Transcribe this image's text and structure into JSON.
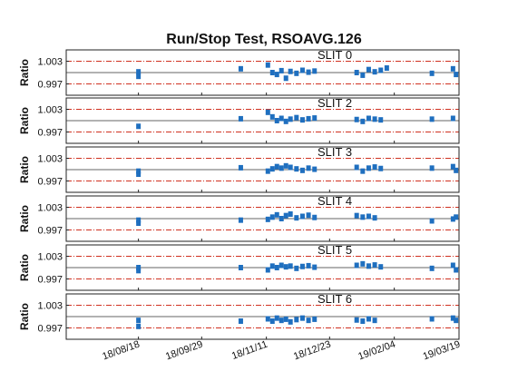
{
  "figure": {
    "title": "Run/Stop Test, RSOAVG.126"
  },
  "chart_data": {
    "type": "scatter",
    "title": "Run/Stop Test, RSOAVG.126",
    "ylabel": "Ratio",
    "ytick_labels": [
      "1.003",
      "0.997"
    ],
    "reference_lines": [
      1.003,
      0.997,
      1.0
    ],
    "ylim": [
      0.994,
      1.006
    ],
    "x_tick_labels": [
      "18/08/18",
      "18/09/29",
      "18/11/11",
      "18/12/23",
      "19/02/04",
      "19/03/19"
    ],
    "x_tick_dates": [
      "2018-08-18",
      "2018-09-29",
      "2018-11-11",
      "2018-12-23",
      "2019-02-04",
      "2019-03-19"
    ],
    "xlim": [
      "2018-07-01",
      "2019-03-19"
    ],
    "grid": false,
    "marker_color": "#1f6fbf",
    "reference_line_color": "#d03020",
    "panels": [
      {
        "label": "SLIT 0",
        "points": [
          {
            "x": "2018-08-18",
            "y": 0.999
          },
          {
            "x": "2018-08-18",
            "y": 1.0002
          },
          {
            "x": "2018-10-25",
            "y": 1.001
          },
          {
            "x": "2018-11-12",
            "y": 1.002
          },
          {
            "x": "2018-11-15",
            "y": 1.0
          },
          {
            "x": "2018-11-18",
            "y": 0.9995
          },
          {
            "x": "2018-11-21",
            "y": 1.0005
          },
          {
            "x": "2018-11-24",
            "y": 0.9985
          },
          {
            "x": "2018-11-27",
            "y": 1.0003
          },
          {
            "x": "2018-12-01",
            "y": 0.9998
          },
          {
            "x": "2018-12-05",
            "y": 1.0006
          },
          {
            "x": "2018-12-09",
            "y": 1.0001
          },
          {
            "x": "2018-12-13",
            "y": 1.0004
          },
          {
            "x": "2019-01-10",
            "y": 1.0
          },
          {
            "x": "2019-01-14",
            "y": 0.9993
          },
          {
            "x": "2019-01-18",
            "y": 1.0008
          },
          {
            "x": "2019-01-22",
            "y": 1.0002
          },
          {
            "x": "2019-01-26",
            "y": 1.0006
          },
          {
            "x": "2019-01-30",
            "y": 1.0012
          },
          {
            "x": "2019-03-01",
            "y": 0.9998
          },
          {
            "x": "2019-03-15",
            "y": 1.001
          },
          {
            "x": "2019-03-17",
            "y": 0.9995
          }
        ]
      },
      {
        "label": "SLIT 2",
        "points": [
          {
            "x": "2018-08-18",
            "y": 0.9985
          },
          {
            "x": "2018-10-25",
            "y": 1.0005
          },
          {
            "x": "2018-11-12",
            "y": 1.0022
          },
          {
            "x": "2018-11-15",
            "y": 1.001
          },
          {
            "x": "2018-11-18",
            "y": 1.0
          },
          {
            "x": "2018-11-21",
            "y": 1.0006
          },
          {
            "x": "2018-11-24",
            "y": 0.9998
          },
          {
            "x": "2018-11-27",
            "y": 1.0004
          },
          {
            "x": "2018-12-01",
            "y": 1.0008
          },
          {
            "x": "2018-12-05",
            "y": 1.0002
          },
          {
            "x": "2018-12-09",
            "y": 1.0005
          },
          {
            "x": "2018-12-13",
            "y": 1.0007
          },
          {
            "x": "2019-01-10",
            "y": 1.0003
          },
          {
            "x": "2019-01-14",
            "y": 0.9998
          },
          {
            "x": "2019-01-18",
            "y": 1.0006
          },
          {
            "x": "2019-01-22",
            "y": 1.0004
          },
          {
            "x": "2019-01-26",
            "y": 1.0002
          },
          {
            "x": "2019-03-01",
            "y": 1.0004
          },
          {
            "x": "2019-03-15",
            "y": 1.0006
          }
        ]
      },
      {
        "label": "SLIT 3",
        "points": [
          {
            "x": "2018-08-18",
            "y": 0.9988
          },
          {
            "x": "2018-08-18",
            "y": 0.9996
          },
          {
            "x": "2018-10-25",
            "y": 1.0005
          },
          {
            "x": "2018-11-12",
            "y": 0.9996
          },
          {
            "x": "2018-11-15",
            "y": 1.0002
          },
          {
            "x": "2018-11-18",
            "y": 1.0008
          },
          {
            "x": "2018-11-21",
            "y": 1.0004
          },
          {
            "x": "2018-11-24",
            "y": 1.001
          },
          {
            "x": "2018-11-27",
            "y": 1.0006
          },
          {
            "x": "2018-12-01",
            "y": 1.0002
          },
          {
            "x": "2018-12-05",
            "y": 0.9998
          },
          {
            "x": "2018-12-09",
            "y": 1.0004
          },
          {
            "x": "2018-12-13",
            "y": 1.0001
          },
          {
            "x": "2019-01-10",
            "y": 1.0006
          },
          {
            "x": "2019-01-14",
            "y": 0.9996
          },
          {
            "x": "2019-01-18",
            "y": 1.0004
          },
          {
            "x": "2019-01-22",
            "y": 1.0007
          },
          {
            "x": "2019-01-26",
            "y": 1.0003
          },
          {
            "x": "2019-03-01",
            "y": 1.0004
          },
          {
            "x": "2019-03-15",
            "y": 1.0008
          },
          {
            "x": "2019-03-17",
            "y": 0.9998
          }
        ]
      },
      {
        "label": "SLIT 4",
        "points": [
          {
            "x": "2018-08-18",
            "y": 0.9988
          },
          {
            "x": "2018-08-18",
            "y": 0.9996
          },
          {
            "x": "2018-10-25",
            "y": 0.9996
          },
          {
            "x": "2018-11-12",
            "y": 0.9998
          },
          {
            "x": "2018-11-15",
            "y": 1.0004
          },
          {
            "x": "2018-11-18",
            "y": 1.001
          },
          {
            "x": "2018-11-21",
            "y": 1.0
          },
          {
            "x": "2018-11-24",
            "y": 1.0008
          },
          {
            "x": "2018-11-27",
            "y": 1.0012
          },
          {
            "x": "2018-12-01",
            "y": 1.0002
          },
          {
            "x": "2018-12-05",
            "y": 1.0006
          },
          {
            "x": "2018-12-09",
            "y": 1.0009
          },
          {
            "x": "2018-12-13",
            "y": 1.0003
          },
          {
            "x": "2019-01-10",
            "y": 1.0008
          },
          {
            "x": "2019-01-14",
            "y": 1.0004
          },
          {
            "x": "2019-01-18",
            "y": 1.0006
          },
          {
            "x": "2019-01-22",
            "y": 1.0002
          },
          {
            "x": "2019-03-01",
            "y": 0.9994
          },
          {
            "x": "2019-03-15",
            "y": 0.9999
          },
          {
            "x": "2019-03-17",
            "y": 1.0004
          }
        ]
      },
      {
        "label": "SLIT 5",
        "points": [
          {
            "x": "2018-08-18",
            "y": 0.9992
          },
          {
            "x": "2018-08-18",
            "y": 1.0
          },
          {
            "x": "2018-10-25",
            "y": 1.0
          },
          {
            "x": "2018-11-12",
            "y": 0.9994
          },
          {
            "x": "2018-11-15",
            "y": 1.0004
          },
          {
            "x": "2018-11-18",
            "y": 1.0
          },
          {
            "x": "2018-11-21",
            "y": 1.0006
          },
          {
            "x": "2018-11-24",
            "y": 1.0002
          },
          {
            "x": "2018-11-27",
            "y": 1.0004
          },
          {
            "x": "2018-12-01",
            "y": 0.9998
          },
          {
            "x": "2018-12-05",
            "y": 1.0003
          },
          {
            "x": "2018-12-09",
            "y": 1.0005
          },
          {
            "x": "2018-12-13",
            "y": 1.0001
          },
          {
            "x": "2019-01-10",
            "y": 1.0006
          },
          {
            "x": "2019-01-14",
            "y": 1.001
          },
          {
            "x": "2019-01-18",
            "y": 1.0004
          },
          {
            "x": "2019-01-22",
            "y": 1.0007
          },
          {
            "x": "2019-01-26",
            "y": 1.0002
          },
          {
            "x": "2019-03-01",
            "y": 0.9998
          },
          {
            "x": "2019-03-15",
            "y": 1.0006
          },
          {
            "x": "2019-03-17",
            "y": 0.9994
          }
        ]
      },
      {
        "label": "SLIT 6",
        "points": [
          {
            "x": "2018-08-18",
            "y": 0.999
          },
          {
            "x": "2018-08-18",
            "y": 0.9974
          },
          {
            "x": "2018-10-25",
            "y": 0.9988
          },
          {
            "x": "2018-11-12",
            "y": 0.9994
          },
          {
            "x": "2018-11-15",
            "y": 0.9988
          },
          {
            "x": "2018-11-18",
            "y": 0.9996
          },
          {
            "x": "2018-11-21",
            "y": 0.999
          },
          {
            "x": "2018-11-24",
            "y": 0.9993
          },
          {
            "x": "2018-11-27",
            "y": 0.9986
          },
          {
            "x": "2018-12-01",
            "y": 0.9992
          },
          {
            "x": "2018-12-05",
            "y": 0.9996
          },
          {
            "x": "2018-12-09",
            "y": 0.999
          },
          {
            "x": "2018-12-13",
            "y": 0.9993
          },
          {
            "x": "2019-01-10",
            "y": 0.9991
          },
          {
            "x": "2019-01-14",
            "y": 0.9988
          },
          {
            "x": "2019-01-18",
            "y": 0.9994
          },
          {
            "x": "2019-01-22",
            "y": 0.999
          },
          {
            "x": "2019-03-01",
            "y": 0.9994
          },
          {
            "x": "2019-03-15",
            "y": 0.9996
          },
          {
            "x": "2019-03-17",
            "y": 0.999
          }
        ]
      }
    ]
  }
}
